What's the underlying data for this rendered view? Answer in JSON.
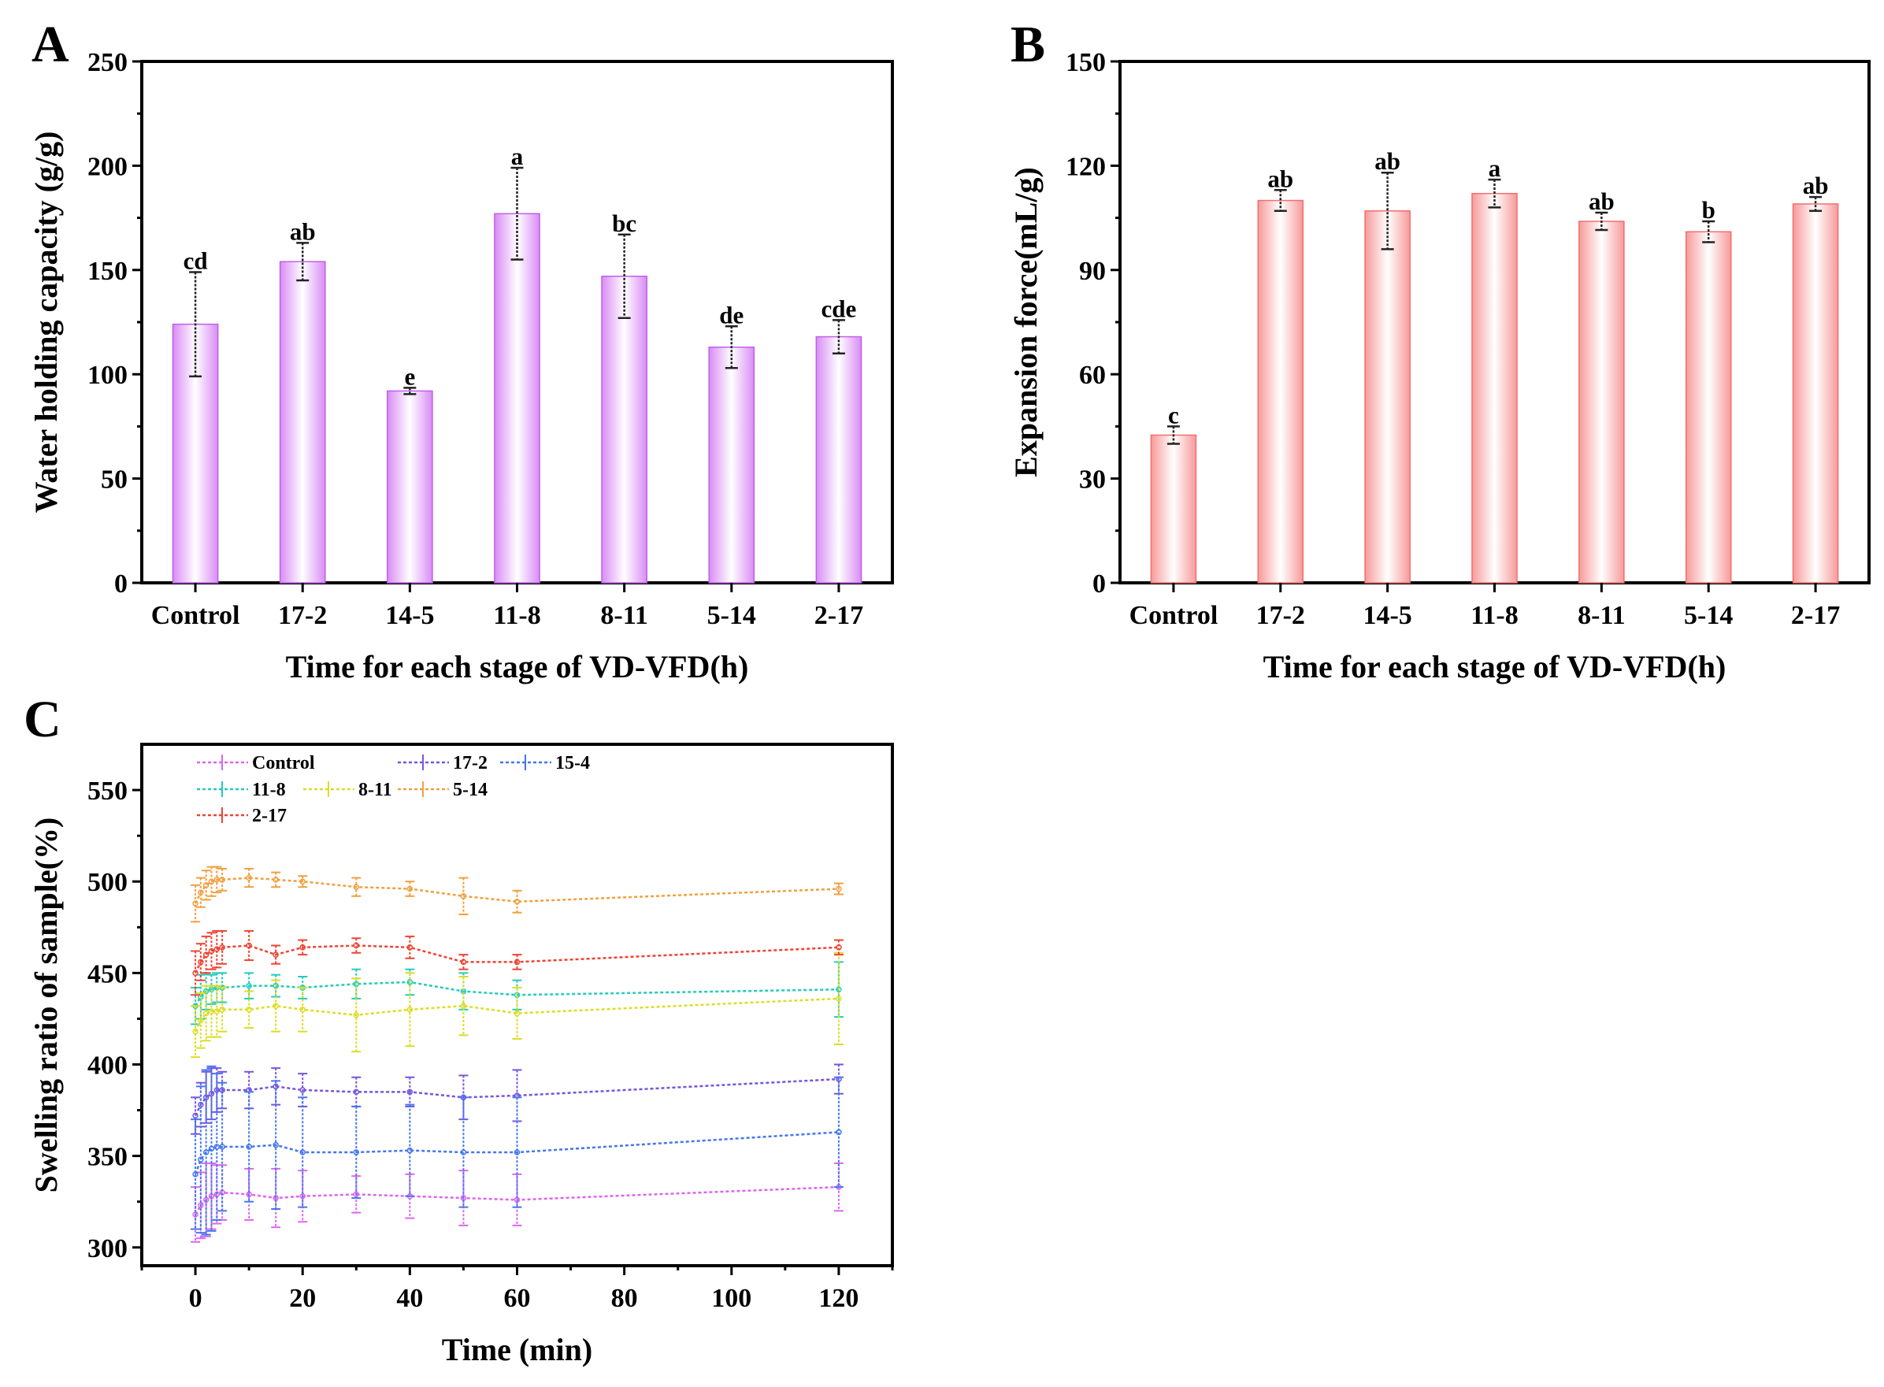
{
  "chart_data": [
    {
      "panel": "A",
      "type": "bar",
      "title": "",
      "xlabel": "Time for each stage of VD-VFD(h)",
      "ylabel": "Water holding capacity (g/g)",
      "ylim": [
        0,
        250
      ],
      "yticks": [
        0,
        50,
        100,
        150,
        200,
        250
      ],
      "categories": [
        "Control",
        "17-2",
        "14-5",
        "11-8",
        "8-11",
        "5-14",
        "2-17"
      ],
      "values": [
        124,
        154,
        92,
        177,
        147,
        113,
        118
      ],
      "errors": [
        25,
        9,
        1.5,
        22,
        20,
        10,
        8
      ],
      "significance": [
        "cd",
        "ab",
        "e",
        "a",
        "bc",
        "de",
        "cde"
      ],
      "bar_color": "#d98cf5",
      "bar_edge_color": "#c060e8",
      "grid": false
    },
    {
      "panel": "B",
      "type": "bar",
      "title": "",
      "xlabel": "Time for each stage of VD-VFD(h)",
      "ylabel": "Expansion force(mL/g)",
      "ylim": [
        0,
        150
      ],
      "yticks": [
        0,
        30,
        60,
        90,
        120,
        150
      ],
      "categories": [
        "Control",
        "17-2",
        "14-5",
        "11-8",
        "8-11",
        "5-14",
        "2-17"
      ],
      "values": [
        42.5,
        110,
        107,
        112,
        104,
        101,
        109
      ],
      "errors": [
        2.5,
        3,
        11,
        4,
        2.5,
        3,
        2
      ],
      "significance": [
        "c",
        "ab",
        "ab",
        "a",
        "ab",
        "b",
        "ab"
      ],
      "bar_color": "#f79a9a",
      "bar_edge_color": "#f07070",
      "grid": false
    },
    {
      "panel": "C",
      "type": "line",
      "title": "",
      "xlabel": "Time (min)",
      "ylabel": "Swelling ratio of sample(%)",
      "xlim": [
        -10,
        130
      ],
      "ylim": [
        290,
        575
      ],
      "xticks": [
        0,
        20,
        40,
        60,
        80,
        100,
        120
      ],
      "yticks": [
        300,
        350,
        400,
        450,
        500,
        550
      ],
      "legend_position": "top-left",
      "grid": false,
      "x": [
        0,
        1,
        2,
        3,
        4,
        5,
        10,
        15,
        20,
        30,
        40,
        50,
        60,
        120
      ],
      "series": [
        {
          "name": "Control",
          "color": "#dd66ee",
          "values": [
            318,
            323,
            326,
            328,
            329,
            330,
            329,
            327,
            328,
            329,
            328,
            327,
            326,
            333
          ],
          "errors": [
            15,
            18,
            20,
            18,
            16,
            15,
            14,
            16,
            14,
            10,
            12,
            15,
            14,
            13
          ]
        },
        {
          "name": "17-2",
          "color": "#7755dd",
          "values": [
            372,
            378,
            382,
            384,
            386,
            386,
            386,
            388,
            386,
            385,
            385,
            382,
            383,
            392
          ],
          "errors": [
            10,
            12,
            14,
            14,
            12,
            10,
            10,
            10,
            9,
            8,
            8,
            12,
            14,
            8
          ]
        },
        {
          "name": "15-4",
          "color": "#4477ee",
          "values": [
            340,
            348,
            352,
            354,
            355,
            355,
            355,
            356,
            352,
            352,
            353,
            352,
            352,
            363
          ],
          "errors": [
            30,
            40,
            45,
            45,
            40,
            35,
            30,
            35,
            30,
            25,
            25,
            30,
            30,
            30
          ]
        },
        {
          "name": "11-8",
          "color": "#22ccbb",
          "values": [
            432,
            437,
            440,
            441,
            442,
            442,
            443,
            443,
            442,
            444,
            445,
            440,
            438,
            441
          ],
          "errors": [
            10,
            12,
            10,
            8,
            8,
            8,
            7,
            6,
            6,
            8,
            7,
            10,
            8,
            15
          ]
        },
        {
          "name": "8-11",
          "color": "#dddd22",
          "values": [
            418,
            424,
            428,
            429,
            429,
            430,
            430,
            432,
            430,
            427,
            430,
            432,
            428,
            436
          ],
          "errors": [
            14,
            15,
            15,
            14,
            14,
            12,
            10,
            14,
            12,
            20,
            20,
            16,
            14,
            25
          ]
        },
        {
          "name": "5-14",
          "color": "#f0a040",
          "values": [
            488,
            494,
            498,
            500,
            501,
            501,
            502,
            501,
            500,
            497,
            496,
            492,
            489,
            496
          ],
          "errors": [
            10,
            8,
            8,
            8,
            7,
            6,
            5,
            4,
            3,
            5,
            4,
            10,
            6,
            3
          ]
        },
        {
          "name": "2-17",
          "color": "#ee4433",
          "values": [
            450,
            456,
            460,
            462,
            463,
            464,
            465,
            460,
            464,
            465,
            464,
            456,
            456,
            464
          ],
          "errors": [
            12,
            10,
            10,
            10,
            10,
            9,
            8,
            5,
            4,
            4,
            6,
            4,
            4,
            4
          ]
        }
      ]
    }
  ],
  "panel_labels": [
    "A",
    "B",
    "C"
  ]
}
